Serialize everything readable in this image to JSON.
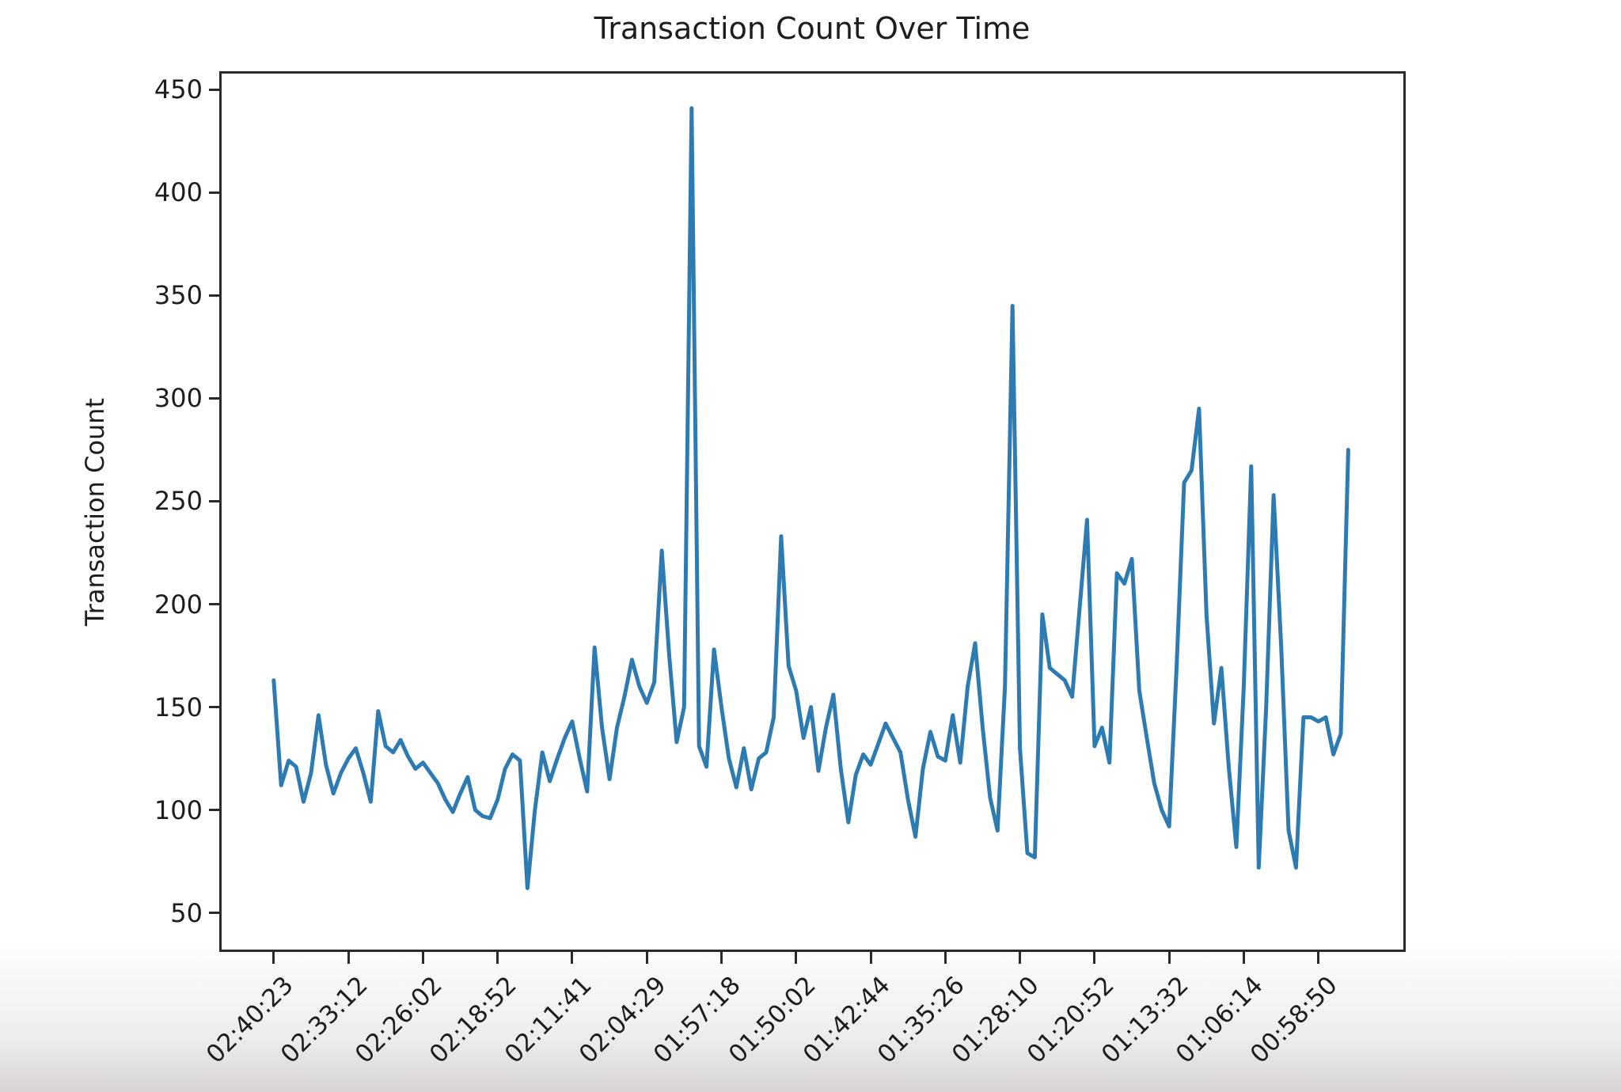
{
  "chart_data": {
    "type": "line",
    "title": "Transaction Count Over Time",
    "xlabel": "",
    "ylabel": "Transaction Count",
    "grid": false,
    "legend": "none",
    "line_color": "#2e7bb1",
    "axis_color": "#2a2a2a",
    "ylim": [
      31,
      459
    ],
    "yticks": [
      50,
      100,
      150,
      200,
      250,
      300,
      350,
      400,
      450
    ],
    "xlim_index": [
      -7.3,
      151.7
    ],
    "xtick_every_n_points": 10,
    "xtick_labels": [
      "02:40:23",
      "02:33:12",
      "02:26:02",
      "02:18:52",
      "02:11:41",
      "02:04:29",
      "01:57:18",
      "01:50:02",
      "01:42:44",
      "01:35:26",
      "01:28:10",
      "01:20:52",
      "01:13:32",
      "01:06:14",
      "00:58:50"
    ],
    "series": [
      {
        "name": "Transaction Count",
        "values": [
          163,
          112,
          124,
          121,
          104,
          118,
          146,
          122,
          108,
          118,
          125,
          130,
          118,
          104,
          148,
          131,
          128,
          134,
          126,
          120,
          123,
          118,
          113,
          105,
          99,
          108,
          116,
          100,
          97,
          96,
          105,
          120,
          127,
          124,
          62,
          100,
          128,
          114,
          125,
          135,
          143,
          125,
          109,
          179,
          140,
          115,
          140,
          155,
          173,
          160,
          152,
          162,
          226,
          175,
          133,
          150,
          441,
          131,
          121,
          178,
          150,
          125,
          111,
          130,
          110,
          125,
          128,
          145,
          233,
          170,
          158,
          135,
          150,
          119,
          140,
          156,
          120,
          94,
          117,
          127,
          122,
          132,
          142,
          135,
          128,
          105,
          87,
          120,
          138,
          126,
          124,
          146,
          123,
          160,
          181,
          140,
          106,
          90,
          160,
          345,
          130,
          79,
          77,
          195,
          169,
          166,
          163,
          155,
          198,
          241,
          131,
          140,
          123,
          215,
          210,
          222,
          158,
          135,
          113,
          100,
          92,
          170,
          259,
          265,
          295,
          195,
          142,
          169,
          120,
          82,
          160,
          267,
          72,
          150,
          253,
          180,
          90,
          72,
          145,
          145,
          143,
          145,
          127,
          137,
          275
        ]
      }
    ]
  }
}
